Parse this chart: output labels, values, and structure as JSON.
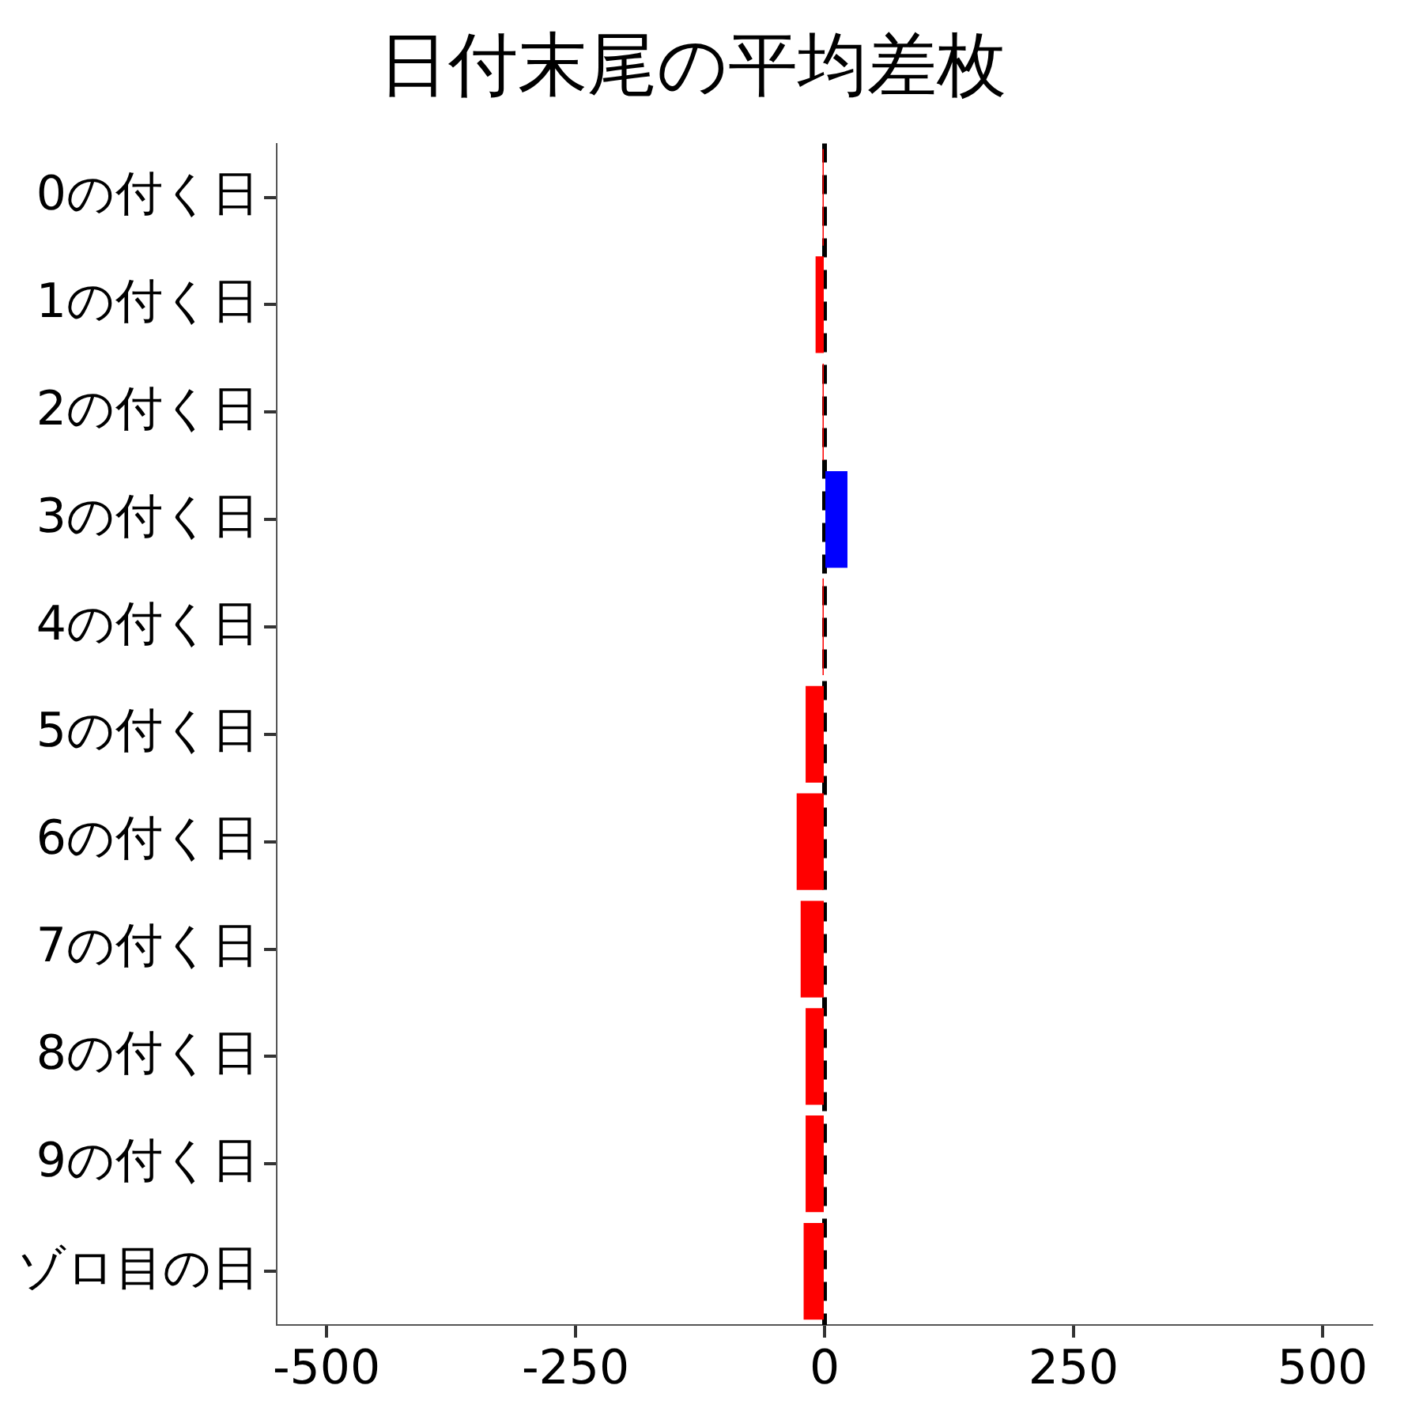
{
  "chart_data": {
    "type": "bar",
    "orientation": "horizontal",
    "title": "日付末尾の平均差枚",
    "categories": [
      "0の付く日",
      "1の付く日",
      "2の付く日",
      "3の付く日",
      "4の付く日",
      "5の付く日",
      "6の付く日",
      "7の付く日",
      "8の付く日",
      "9の付く日",
      "ゾロ目の日"
    ],
    "values": [
      -2,
      -9,
      -2,
      23,
      -2,
      -19,
      -28,
      -24,
      -19,
      -19,
      -21
    ],
    "colors": [
      "#ff0000",
      "#ff0000",
      "#ff0000",
      "#0000ff",
      "#ff0000",
      "#ff0000",
      "#ff0000",
      "#ff0000",
      "#ff0000",
      "#ff0000",
      "#ff0000"
    ],
    "xlim": [
      -550,
      550
    ],
    "xticks": [
      -500,
      -250,
      0,
      250,
      500
    ],
    "ref_lines": [
      {
        "axis": "x",
        "value": 0,
        "color": "#000000",
        "line_style": "dashed"
      }
    ],
    "grid": false,
    "legend": false
  }
}
